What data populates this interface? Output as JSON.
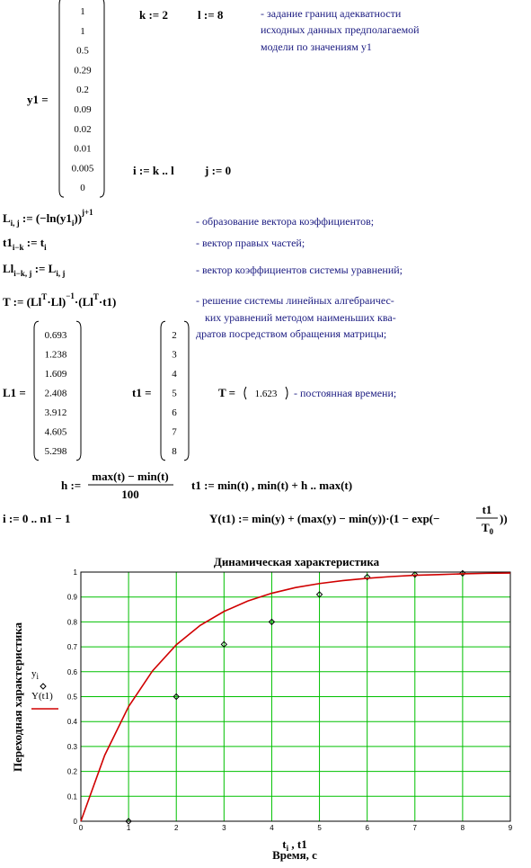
{
  "worksheet": {
    "y1_label": "y1 =",
    "y1": [
      1,
      1,
      0.5,
      0.29,
      0.2,
      0.09,
      0.02,
      0.01,
      0.005,
      0
    ],
    "k_def": "k := 2",
    "l_def": "l := 8",
    "note1": [
      "- задание границ  адекватности",
      "исходных данных  предполагаемой",
      "модели  по  значениям  y1"
    ],
    "i_def": "i := k .. l",
    "j_def": "j := 0",
    "expr_L": [
      "L",
      "i, j",
      " := ",
      "(−ln(y1",
      "i",
      "))",
      "j+1"
    ],
    "comment_L": "- образование  вектора  коэффициентов;",
    "expr_t1": [
      "t1",
      "i−k",
      " := t",
      "i"
    ],
    "comment_t1": "- вектор  правых  частей;",
    "expr_Ll": [
      "Ll",
      "i−k, j",
      " := L",
      "i, j"
    ],
    "comment_Ll": "- вектор  коэффициентов  системы  уравнений;",
    "expr_T": [
      "T := (Ll",
      "T",
      "·Ll)",
      "−1",
      "·(Ll",
      "T",
      "·t1)"
    ],
    "comment_T": [
      "- решение  системы  линейных  алгебраичес-",
      "ких  уравнений  методом  наименьших  ква-",
      "дратов  посредством  обращения  матрицы;"
    ],
    "L1_label": "L1 =",
    "L1": [
      0.693,
      1.238,
      1.609,
      2.408,
      3.912,
      4.605,
      5.298
    ],
    "t1_label": "t1 =",
    "t1": [
      2,
      3,
      4,
      5,
      6,
      7,
      8
    ],
    "T_label": "T =",
    "T_value": 1.623,
    "comment_Tval": "- постоянная  времени;",
    "h_lhs": "h :=",
    "h_num": "max(t) − min(t)",
    "h_den": "100",
    "t1_range": "t1 := min(t) , min(t) + h .. max(t)",
    "i_range": "i := 0 .. n1 − 1",
    "Y_pre": "Y(t1) := min(y) + (max(y) − min(y))·(1 − exp(−",
    "Y_num": "t1",
    "Y_den": [
      "T",
      "0"
    ],
    "Y_post": "))"
  },
  "chart_data": {
    "type": "line",
    "title": "Динамическая  характеристика",
    "ylabel": "Переходная  характеристика",
    "xlabel": [
      "t",
      "i",
      " , t1"
    ],
    "xlabel2": "Время, с",
    "xlim": [
      0,
      9
    ],
    "ylim": [
      0,
      1
    ],
    "xticks": [
      0,
      1,
      2,
      3,
      4,
      5,
      6,
      7,
      8,
      9
    ],
    "yticks": [
      0,
      0.1,
      0.2,
      0.3,
      0.4,
      0.5,
      0.6,
      0.7,
      0.8,
      0.9,
      1
    ],
    "grid": true,
    "grid_color": "#00c000",
    "series": [
      {
        "name": "y",
        "name_subscript": "i",
        "marker": "diamond",
        "color": "#000000",
        "x": [
          1,
          2,
          3,
          4,
          5,
          6,
          7,
          8
        ],
        "values": [
          0,
          0.5,
          0.71,
          0.8,
          0.91,
          0.98,
          0.99,
          0.995
        ]
      },
      {
        "name": "Y(t1)",
        "marker": "line",
        "color": "#d00000",
        "x": [
          0,
          0.5,
          1,
          1.5,
          2,
          2.5,
          3,
          3.5,
          4,
          4.5,
          5,
          5.5,
          6,
          6.5,
          7,
          7.5,
          8,
          8.5,
          9
        ],
        "values": [
          0,
          0.265,
          0.46,
          0.603,
          0.708,
          0.786,
          0.842,
          0.884,
          0.915,
          0.938,
          0.954,
          0.966,
          0.975,
          0.982,
          0.987,
          0.99,
          0.993,
          0.995,
          0.996
        ]
      }
    ]
  }
}
